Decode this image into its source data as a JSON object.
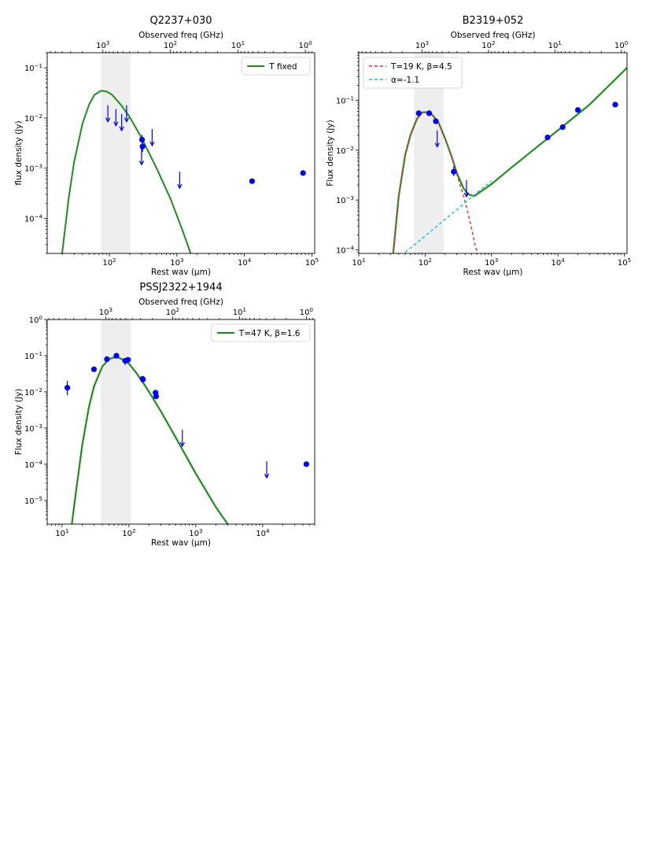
{
  "colors": {
    "points": "#0000ee",
    "model": "#1e8c1e",
    "dust": "#e03030",
    "synchrotron": "#20c0d0",
    "shade": "#eeeeee"
  },
  "chart_data": [
    {
      "type": "scatter",
      "title": "Q2237+030",
      "xlabel": "Rest wav (μm)",
      "ylabel": "flux density (Jy)",
      "top_xlabel": "Observed freq (GHz)",
      "x_scale": "log",
      "y_scale": "log",
      "xlim": [
        12,
        110000
      ],
      "ylim": [
        2e-05,
        0.2
      ],
      "x_ticks": [
        {
          "v": 100,
          "base": "10",
          "exp": "2"
        },
        {
          "v": 1000,
          "base": "10",
          "exp": "3"
        },
        {
          "v": 10000,
          "base": "10",
          "exp": "4"
        },
        {
          "v": 100000,
          "base": "10",
          "exp": "5"
        }
      ],
      "y_ticks": [
        {
          "v": 0.1,
          "base": "10",
          "exp": "−1"
        },
        {
          "v": 0.01,
          "base": "10",
          "exp": "−2"
        },
        {
          "v": 0.001,
          "base": "10",
          "exp": "−3"
        },
        {
          "v": 0.0001,
          "base": "10",
          "exp": "−4"
        }
      ],
      "top_ticks": [
        {
          "v": 1000,
          "base": "10",
          "exp": "3"
        },
        {
          "v": 100,
          "base": "10",
          "exp": "2"
        },
        {
          "v": 10,
          "base": "10",
          "exp": "1"
        },
        {
          "v": 1,
          "base": "10",
          "exp": "0"
        }
      ],
      "freq_factor": 80000,
      "shade_x": [
        75,
        205
      ],
      "legend": {
        "position": "top-right",
        "entries": [
          {
            "label": "T fixed",
            "series": 0
          }
        ]
      },
      "series": [
        {
          "name": "T fixed",
          "style": "model",
          "width": 2,
          "x": [
            20,
            25,
            30,
            40,
            50,
            60,
            75,
            90,
            110,
            150,
            200,
            300,
            500,
            800,
            1200,
            1600
          ],
          "y": [
            2e-05,
            0.00026,
            0.0013,
            0.0078,
            0.0185,
            0.029,
            0.035,
            0.034,
            0.029,
            0.018,
            0.0105,
            0.004,
            0.001,
            0.00025,
            6e-05,
            2e-05
          ]
        }
      ],
      "points": [
        {
          "x": 305,
          "y": 0.0037,
          "err": [
            0.0031,
            0.0046
          ]
        },
        {
          "x": 310,
          "y": 0.0027,
          "err": [
            0.0021,
            0.0034
          ]
        },
        {
          "x": 13000,
          "y": 0.00055,
          "err": [
            0.0005,
            0.0006
          ]
        },
        {
          "x": 74000,
          "y": 0.0008,
          "err": [
            0.00075,
            0.00085
          ]
        }
      ],
      "upper_limits": [
        {
          "x": 95,
          "y": 0.018
        },
        {
          "x": 125,
          "y": 0.015
        },
        {
          "x": 152,
          "y": 0.012
        },
        {
          "x": 180,
          "y": 0.018
        },
        {
          "x": 300,
          "y": 0.0025
        },
        {
          "x": 430,
          "y": 0.006
        },
        {
          "x": 1100,
          "y": 0.00085
        }
      ]
    },
    {
      "type": "scatter",
      "title": "B2319+052",
      "xlabel": "Rest wav (μm)",
      "ylabel": "Flux density (Jy)",
      "top_xlabel": "Observed freq (GHz)",
      "x_scale": "log",
      "y_scale": "log",
      "xlim": [
        10,
        110000
      ],
      "ylim": [
        8.5e-05,
        0.9
      ],
      "x_ticks": [
        {
          "v": 10,
          "base": "10",
          "exp": "1"
        },
        {
          "v": 100,
          "base": "10",
          "exp": "2"
        },
        {
          "v": 1000,
          "base": "10",
          "exp": "3"
        },
        {
          "v": 10000,
          "base": "10",
          "exp": "4"
        },
        {
          "v": 100000,
          "base": "10",
          "exp": "5"
        }
      ],
      "y_ticks": [
        {
          "v": 0.1,
          "base": "10",
          "exp": "−1"
        },
        {
          "v": 0.01,
          "base": "10",
          "exp": "−2"
        },
        {
          "v": 0.001,
          "base": "10",
          "exp": "−3"
        },
        {
          "v": 0.0001,
          "base": "10",
          "exp": "−4"
        }
      ],
      "top_ticks": [
        {
          "v": 1000,
          "base": "10",
          "exp": "3"
        },
        {
          "v": 100,
          "base": "10",
          "exp": "2"
        },
        {
          "v": 10,
          "base": "10",
          "exp": "1"
        },
        {
          "v": 1,
          "base": "10",
          "exp": "0"
        }
      ],
      "freq_factor": 90000,
      "shade_x": [
        68,
        190
      ],
      "legend": {
        "position": "top-left",
        "entries": [
          {
            "label": "T=19 K, β=4.5",
            "series": 1
          },
          {
            "label": "α=-1.1",
            "series": 2
          }
        ]
      },
      "series": [
        {
          "name": "",
          "style": "model",
          "width": 2.2,
          "x": [
            33,
            40,
            50,
            60,
            75,
            90,
            110,
            130,
            160,
            200,
            250,
            300,
            380,
            450,
            550,
            700,
            1000,
            2000,
            5000,
            10000,
            30000,
            110000
          ],
          "y": [
            8.5e-05,
            0.0012,
            0.008,
            0.02,
            0.042,
            0.057,
            0.058,
            0.05,
            0.035,
            0.017,
            0.0075,
            0.0035,
            0.0017,
            0.0013,
            0.0012,
            0.0015,
            0.0021,
            0.0045,
            0.012,
            0.025,
            0.082,
            0.45
          ]
        },
        {
          "name": "T=19 K, β=4.5",
          "style": "dust",
          "width": 1.4,
          "x": [
            33,
            40,
            50,
            60,
            75,
            90,
            110,
            130,
            160,
            200,
            250,
            300,
            380,
            450,
            500,
            560,
            620
          ],
          "y": [
            8.5e-05,
            0.0012,
            0.008,
            0.02,
            0.042,
            0.057,
            0.058,
            0.05,
            0.035,
            0.017,
            0.0075,
            0.0033,
            0.0012,
            0.0005,
            0.00027,
            0.00013,
            8.5e-05
          ]
        },
        {
          "name": "α=-1.1",
          "style": "synchrotron",
          "width": 1.4,
          "x": [
            50,
            100,
            200,
            400,
            600,
            1000
          ],
          "y": [
            8.9e-05,
            0.00019,
            0.00041,
            0.00088,
            0.0014,
            0.0024
          ]
        }
      ],
      "points": [
        {
          "x": 80,
          "y": 0.055,
          "err": [
            0.05,
            0.06
          ]
        },
        {
          "x": 115,
          "y": 0.055,
          "err": [
            0.05,
            0.06
          ]
        },
        {
          "x": 145,
          "y": 0.038,
          "err": [
            0.033,
            0.044
          ]
        },
        {
          "x": 270,
          "y": 0.0037,
          "err": [
            0.003,
            0.0048
          ]
        },
        {
          "x": 7000,
          "y": 0.018,
          "err": [
            0.016,
            0.02
          ]
        },
        {
          "x": 11800,
          "y": 0.029,
          "err": [
            0.026,
            0.032
          ]
        },
        {
          "x": 20000,
          "y": 0.064,
          "err": [
            0.058,
            0.07
          ]
        },
        {
          "x": 73000,
          "y": 0.082,
          "err": [
            0.075,
            0.09
          ]
        }
      ],
      "upper_limits": [
        {
          "x": 152,
          "y": 0.025
        },
        {
          "x": 420,
          "y": 0.0025
        }
      ]
    },
    {
      "type": "scatter",
      "title": "PSSJ2322+1944",
      "xlabel": "Rest wav (μm)",
      "ylabel": "Flux density (Jy)",
      "top_xlabel": "Observed freq (GHz)",
      "x_scale": "log",
      "y_scale": "log",
      "xlim": [
        6,
        60000
      ],
      "ylim": [
        2.2e-06,
        1.0
      ],
      "x_ticks": [
        {
          "v": 10,
          "base": "10",
          "exp": "1"
        },
        {
          "v": 100,
          "base": "10",
          "exp": "2"
        },
        {
          "v": 1000,
          "base": "10",
          "exp": "3"
        },
        {
          "v": 10000,
          "base": "10",
          "exp": "4"
        }
      ],
      "y_ticks": [
        {
          "v": 1,
          "base": "10",
          "exp": "0"
        },
        {
          "v": 0.1,
          "base": "10",
          "exp": "−1"
        },
        {
          "v": 0.01,
          "base": "10",
          "exp": "−2"
        },
        {
          "v": 0.001,
          "base": "10",
          "exp": "−3"
        },
        {
          "v": 0.0001,
          "base": "10",
          "exp": "−4"
        },
        {
          "v": 1e-05,
          "base": "10",
          "exp": "−5"
        }
      ],
      "top_ticks": [
        {
          "v": 1000,
          "base": "10",
          "exp": "3"
        },
        {
          "v": 100,
          "base": "10",
          "exp": "2"
        },
        {
          "v": 10,
          "base": "10",
          "exp": "1"
        },
        {
          "v": 1,
          "base": "10",
          "exp": "0"
        }
      ],
      "freq_factor": 45000,
      "shade_x": [
        38,
        108
      ],
      "legend": {
        "position": "top-right",
        "entries": [
          {
            "label": "T=47 K, β=1.6",
            "series": 0
          }
        ]
      },
      "series": [
        {
          "name": "T=47 K, β=1.6",
          "style": "model",
          "width": 2.2,
          "x": [
            14,
            16,
            20,
            25,
            30,
            40,
            50,
            60,
            70,
            85,
            100,
            130,
            170,
            220,
            300,
            500,
            1000,
            2000,
            3000
          ],
          "y": [
            2.2e-06,
            1.5e-05,
            0.00032,
            0.0035,
            0.014,
            0.05,
            0.08,
            0.09,
            0.088,
            0.075,
            0.06,
            0.033,
            0.016,
            0.0075,
            0.0029,
            0.00055,
            5.5e-05,
            6.5e-06,
            2.2e-06
          ]
        }
      ],
      "points": [
        {
          "x": 12,
          "y": 0.013,
          "err": [
            0.008,
            0.02
          ]
        },
        {
          "x": 30,
          "y": 0.042,
          "err": [
            0.038,
            0.046
          ]
        },
        {
          "x": 47,
          "y": 0.08,
          "err": [
            0.074,
            0.086
          ]
        },
        {
          "x": 65,
          "y": 0.1,
          "err": [
            0.093,
            0.108
          ]
        },
        {
          "x": 88,
          "y": 0.072,
          "err": [
            0.055,
            0.082
          ]
        },
        {
          "x": 97,
          "y": 0.077,
          "err": [
            0.07,
            0.084
          ]
        },
        {
          "x": 160,
          "y": 0.023,
          "err": [
            0.019,
            0.027
          ]
        },
        {
          "x": 162,
          "y": 0.022,
          "err": [
            0.019,
            0.025
          ]
        },
        {
          "x": 250,
          "y": 0.0095,
          "err": [
            0.0085,
            0.0105
          ]
        },
        {
          "x": 255,
          "y": 0.0075,
          "err": [
            0.0066,
            0.0084
          ]
        },
        {
          "x": 45000,
          "y": 0.0001,
          "err": [
            9e-05,
            0.00011
          ]
        }
      ],
      "upper_limits": [
        {
          "x": 630,
          "y": 0.0009
        },
        {
          "x": 11500,
          "y": 0.00012
        }
      ]
    }
  ]
}
